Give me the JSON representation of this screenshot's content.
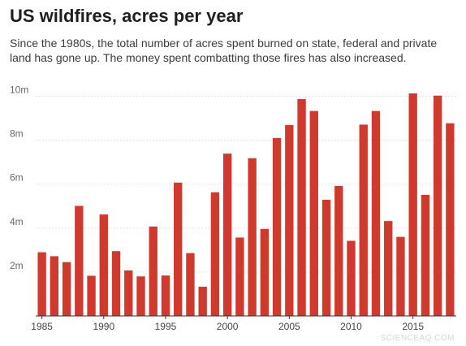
{
  "header": {
    "title": "US wildfires, acres per year",
    "subtitle": "Since the 1980s, the total number of acres spent burned on state, federal and private land has gone up. The money spent combatting those fires has also increased."
  },
  "watermark": "SCIENCEAQ.COM",
  "colors": {
    "bar": "#d0392d"
  },
  "chart_data": {
    "type": "bar",
    "title": "US wildfires, acres per year",
    "xlabel": "",
    "ylabel": "",
    "grid": true,
    "categories": [
      1985,
      1986,
      1987,
      1988,
      1989,
      1990,
      1991,
      1992,
      1993,
      1994,
      1995,
      1996,
      1997,
      1998,
      1999,
      2000,
      2001,
      2002,
      2003,
      2004,
      2005,
      2006,
      2007,
      2008,
      2009,
      2010,
      2011,
      2012,
      2013,
      2014,
      2015,
      2016,
      2017,
      2018
    ],
    "values": [
      2.9,
      2.72,
      2.45,
      5.01,
      1.83,
      4.62,
      2.95,
      2.07,
      1.8,
      4.07,
      1.84,
      6.07,
      2.86,
      1.33,
      5.63,
      7.39,
      3.57,
      7.18,
      3.96,
      8.1,
      8.69,
      9.87,
      9.33,
      5.29,
      5.92,
      3.42,
      8.71,
      9.33,
      4.32,
      3.6,
      10.13,
      5.51,
      10.03,
      8.77
    ],
    "ylim": [
      0,
      10.5
    ],
    "yticks": [
      2,
      4,
      6,
      8,
      10
    ],
    "ytick_labels": [
      "2m",
      "4m",
      "6m",
      "8m",
      "10m"
    ],
    "xticks": [
      1985,
      1990,
      1995,
      2000,
      2005,
      2010,
      2015
    ],
    "xtick_labels": [
      "1985",
      "1990",
      "1995",
      "2000",
      "2005",
      "2010",
      "2015"
    ]
  }
}
